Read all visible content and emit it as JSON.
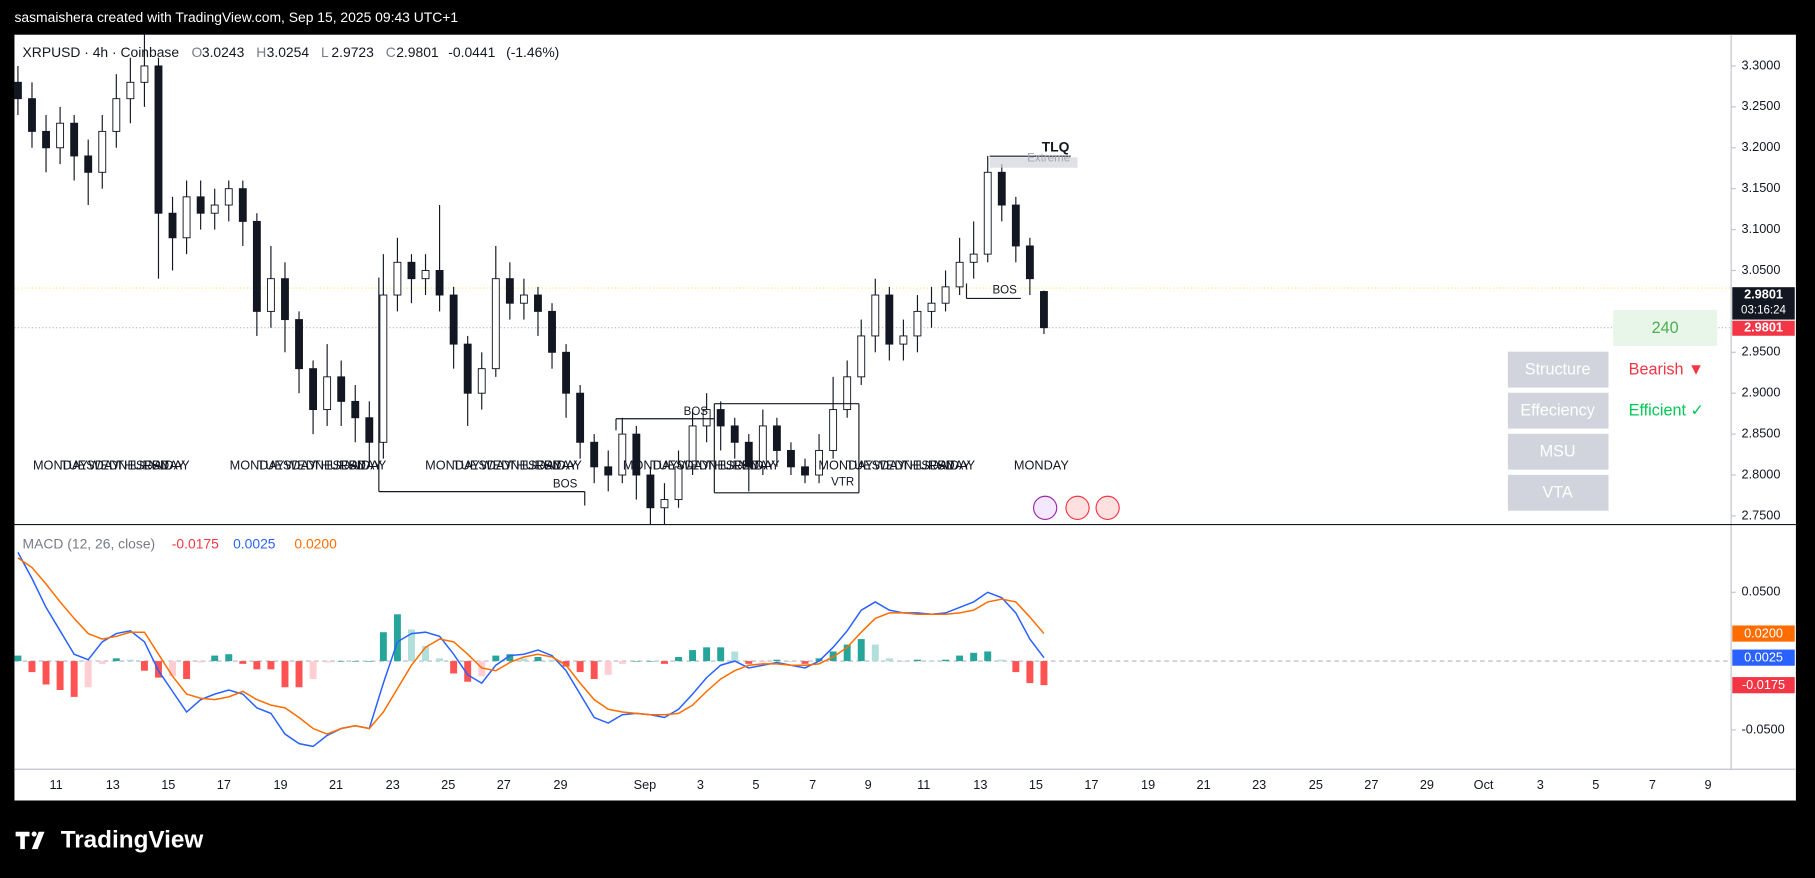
{
  "header": {
    "text": "sasmaishera created with TradingView.com, Sep 15, 2025 09:43 UTC+1"
  },
  "footer": {
    "brand": "TradingView"
  },
  "chart_data": [
    {
      "type": "candlestick",
      "symbol": "XRPUSD · 4h · Coinbase",
      "legend_keys": [
        "O",
        "H",
        "L",
        "C"
      ],
      "change": -0.0441,
      "change_pct": {
        "value": -1.46,
        "label": "(-1.46%)"
      },
      "countdown": "03:16:24",
      "up_color": "#089981",
      "down_color": "#f23645",
      "open": [
        3.28,
        3.26,
        3.22,
        3.2,
        3.23,
        3.19,
        3.17,
        3.22,
        3.26,
        3.28,
        3.3,
        3.12,
        3.09,
        3.14,
        3.12,
        3.13,
        3.15,
        3.11,
        3.0,
        3.04,
        2.99,
        2.93,
        2.88,
        2.92,
        2.89,
        2.87,
        2.84,
        3.02,
        3.06,
        3.04,
        3.05,
        3.02,
        2.96,
        2.9,
        2.93,
        3.04,
        3.01,
        3.02,
        3.0,
        2.95,
        2.9,
        2.84,
        2.81,
        2.8,
        2.85,
        2.8,
        2.76,
        2.77,
        2.81,
        2.86,
        2.88,
        2.86,
        2.84,
        2.81,
        2.86,
        2.83,
        2.81,
        2.8,
        2.83,
        2.88,
        2.92,
        2.97,
        3.02,
        2.96,
        2.97,
        3.0,
        3.01,
        3.03,
        3.06,
        3.07,
        3.17,
        3.13,
        3.08,
        3.0243
      ],
      "high": [
        3.3,
        3.28,
        3.24,
        3.25,
        3.24,
        3.21,
        3.24,
        3.29,
        3.31,
        3.34,
        3.31,
        3.14,
        3.16,
        3.16,
        3.15,
        3.16,
        3.16,
        3.12,
        3.08,
        3.06,
        3.0,
        2.94,
        2.96,
        2.94,
        2.91,
        2.89,
        3.07,
        3.09,
        3.07,
        3.07,
        3.13,
        3.03,
        2.97,
        2.95,
        3.08,
        3.06,
        3.04,
        3.03,
        3.01,
        2.96,
        2.91,
        2.85,
        2.83,
        2.87,
        2.86,
        2.81,
        2.79,
        2.83,
        2.88,
        2.9,
        2.89,
        2.87,
        2.85,
        2.88,
        2.87,
        2.84,
        2.82,
        2.85,
        2.92,
        2.94,
        2.99,
        3.04,
        3.03,
        2.99,
        3.02,
        3.03,
        3.05,
        3.09,
        3.11,
        3.19,
        3.18,
        3.14,
        3.09,
        3.0254
      ],
      "low": [
        3.24,
        3.2,
        3.17,
        3.18,
        3.16,
        3.13,
        3.15,
        3.2,
        3.23,
        3.25,
        3.04,
        3.05,
        3.07,
        3.1,
        3.1,
        3.11,
        3.08,
        2.97,
        2.98,
        2.95,
        2.9,
        2.85,
        2.86,
        2.86,
        2.84,
        2.81,
        2.82,
        3.0,
        3.01,
        3.02,
        3.0,
        2.93,
        2.86,
        2.88,
        2.92,
        2.99,
        2.99,
        2.97,
        2.93,
        2.87,
        2.82,
        2.79,
        2.78,
        2.79,
        2.77,
        2.74,
        2.74,
        2.76,
        2.8,
        2.84,
        2.83,
        2.82,
        2.78,
        2.8,
        2.81,
        2.8,
        2.79,
        2.79,
        2.82,
        2.87,
        2.91,
        2.95,
        2.94,
        2.94,
        2.95,
        2.98,
        3.0,
        3.02,
        3.04,
        3.06,
        3.11,
        3.06,
        3.02,
        2.9723
      ],
      "close": [
        3.26,
        3.22,
        3.2,
        3.23,
        3.19,
        3.17,
        3.22,
        3.26,
        3.28,
        3.3,
        3.12,
        3.09,
        3.14,
        3.12,
        3.13,
        3.15,
        3.11,
        3.0,
        3.04,
        2.99,
        2.93,
        2.88,
        2.92,
        2.89,
        2.87,
        2.84,
        3.02,
        3.06,
        3.04,
        3.05,
        3.02,
        2.96,
        2.9,
        2.93,
        3.04,
        3.01,
        3.02,
        3.0,
        2.95,
        2.9,
        2.84,
        2.81,
        2.8,
        2.85,
        2.8,
        2.76,
        2.77,
        2.81,
        2.86,
        2.88,
        2.86,
        2.84,
        2.81,
        2.86,
        2.83,
        2.81,
        2.8,
        2.83,
        2.88,
        2.92,
        2.97,
        3.02,
        2.96,
        2.97,
        3.0,
        3.01,
        3.03,
        3.06,
        3.07,
        3.17,
        3.13,
        3.08,
        3.04,
        2.9801
      ],
      "ylim": [
        2.7401,
        3.3382
      ],
      "yticks": [
        {
          "value": 3.3,
          "label": "3.3000"
        },
        {
          "value": 3.25,
          "label": "3.2500"
        },
        {
          "value": 3.2,
          "label": "3.2000"
        },
        {
          "value": 3.15,
          "label": "3.1500"
        },
        {
          "value": 3.1,
          "label": "3.1000"
        },
        {
          "value": 3.05,
          "label": "3.0500"
        },
        {
          "value": 2.95,
          "label": "2.9500"
        },
        {
          "value": 2.9,
          "label": "2.9000"
        },
        {
          "value": 2.85,
          "label": "2.8500"
        },
        {
          "value": 2.8,
          "label": "2.8000"
        },
        {
          "value": 2.75,
          "label": "2.7500"
        }
      ],
      "annotations": [
        "TLQ",
        "Extreme",
        "BOS",
        "BOS",
        "BOS",
        "VTR"
      ],
      "day_labels": [
        "MONDAY",
        "TUESDAY",
        "WEDNESDAY",
        "THURSDAY",
        "FRIDAY"
      ],
      "xticks": [
        "11",
        "13",
        "15",
        "17",
        "19",
        "21",
        "23",
        "25",
        "27",
        "29",
        "Sep",
        "3",
        "5",
        "7",
        "9",
        "11",
        "13",
        "15",
        "17",
        "19",
        "21",
        "23",
        "25",
        "27",
        "29",
        "Oct",
        "3",
        "5",
        "7",
        "9"
      ]
    },
    {
      "type": "macd",
      "title": "MACD (12, 26, close)",
      "legend_values": [
        {
          "value": -0.0175,
          "label": "-0.0175",
          "color": "#f23645"
        },
        {
          "value": 0.0025,
          "label": "0.0025",
          "color": "#2962ff"
        },
        {
          "value": 0.02,
          "label": "0.0200",
          "color": "#ff6d00"
        }
      ],
      "series": [
        {
          "color": "#2962ff",
          "values": [
            0.079,
            0.06,
            0.039,
            0.022,
            0.005,
            0.001,
            0.014,
            0.02,
            0.022,
            0.014,
            -0.007,
            -0.022,
            -0.037,
            -0.028,
            -0.024,
            -0.021,
            -0.024,
            -0.034,
            -0.038,
            -0.053,
            -0.06,
            -0.062,
            -0.054,
            -0.049,
            -0.047,
            -0.049,
            -0.016,
            0.014,
            0.02,
            0.021,
            0.018,
            0.005,
            -0.01,
            -0.016,
            -0.003,
            0.004,
            0.005,
            0.008,
            0.004,
            -0.007,
            -0.024,
            -0.041,
            -0.045,
            -0.039,
            -0.038,
            -0.039,
            -0.041,
            -0.035,
            -0.024,
            -0.012,
            -0.003,
            0.0,
            -0.005,
            -0.003,
            -0.001,
            -0.003,
            -0.005,
            0.0,
            0.01,
            0.022,
            0.037,
            0.043,
            0.037,
            0.035,
            0.035,
            0.034,
            0.035,
            0.039,
            0.043,
            0.05,
            0.046,
            0.035,
            0.016,
            0.0025
          ]
        },
        {
          "color": "#ff6d00",
          "values": [
            0.075,
            0.068,
            0.056,
            0.043,
            0.031,
            0.02,
            0.016,
            0.018,
            0.021,
            0.021,
            0.005,
            -0.011,
            -0.024,
            -0.027,
            -0.028,
            -0.026,
            -0.022,
            -0.028,
            -0.032,
            -0.034,
            -0.041,
            -0.049,
            -0.053,
            -0.049,
            -0.047,
            -0.049,
            -0.037,
            -0.02,
            -0.003,
            0.01,
            0.016,
            0.014,
            0.005,
            -0.005,
            -0.007,
            -0.001,
            0.003,
            0.005,
            0.003,
            -0.003,
            -0.016,
            -0.028,
            -0.035,
            -0.037,
            -0.038,
            -0.039,
            -0.039,
            -0.038,
            -0.032,
            -0.022,
            -0.013,
            -0.007,
            -0.003,
            -0.002,
            -0.002,
            -0.003,
            -0.003,
            -0.002,
            0.003,
            0.01,
            0.021,
            0.031,
            0.035,
            0.035,
            0.034,
            0.034,
            0.034,
            0.035,
            0.037,
            0.043,
            0.045,
            0.043,
            0.032,
            0.02
          ]
        }
      ],
      "histogram": {
        "colors": [
          "#26a69a",
          "#b2dfdb",
          "#ff5252",
          "#ffcdd2"
        ],
        "values": [
          0.004,
          -0.008,
          -0.017,
          -0.021,
          -0.026,
          -0.019,
          -0.002,
          0.002,
          0.001,
          -0.007,
          -0.012,
          -0.011,
          -0.013,
          -0.001,
          0.004,
          0.005,
          -0.002,
          -0.006,
          -0.006,
          -0.019,
          -0.019,
          -0.013,
          -0.001,
          0,
          0,
          0,
          0.021,
          0.034,
          0.023,
          0.011,
          0.002,
          -0.009,
          -0.015,
          -0.011,
          0.004,
          0.005,
          0.002,
          0.003,
          0.001,
          -0.004,
          -0.008,
          -0.013,
          -0.01,
          -0.002,
          0,
          0,
          -0.002,
          0.003,
          0.008,
          0.01,
          0.01,
          0.007,
          -0.002,
          -0.001,
          0.001,
          0,
          -0.002,
          0.002,
          0.007,
          0.012,
          0.016,
          0.012,
          0.002,
          0,
          0.001,
          0,
          0.001,
          0.004,
          0.006,
          0.007,
          0.001,
          -0.008,
          -0.016,
          -0.0175
        ]
      },
      "ylim": [
        -0.0786,
        0.0996
      ],
      "yticks": [
        {
          "value": 0.05,
          "label": "0.0500"
        },
        {
          "value": -0.05,
          "label": "-0.0500"
        }
      ]
    }
  ],
  "panel": {
    "value": 240,
    "rows": [
      {
        "name": "Structure",
        "status": "Bearish ▼",
        "color": "#f23645"
      },
      {
        "name": "Effeciency",
        "status": "Efficient ✓",
        "color": "#00c853"
      },
      {
        "name": "MSU"
      },
      {
        "name": "VTA"
      }
    ]
  }
}
